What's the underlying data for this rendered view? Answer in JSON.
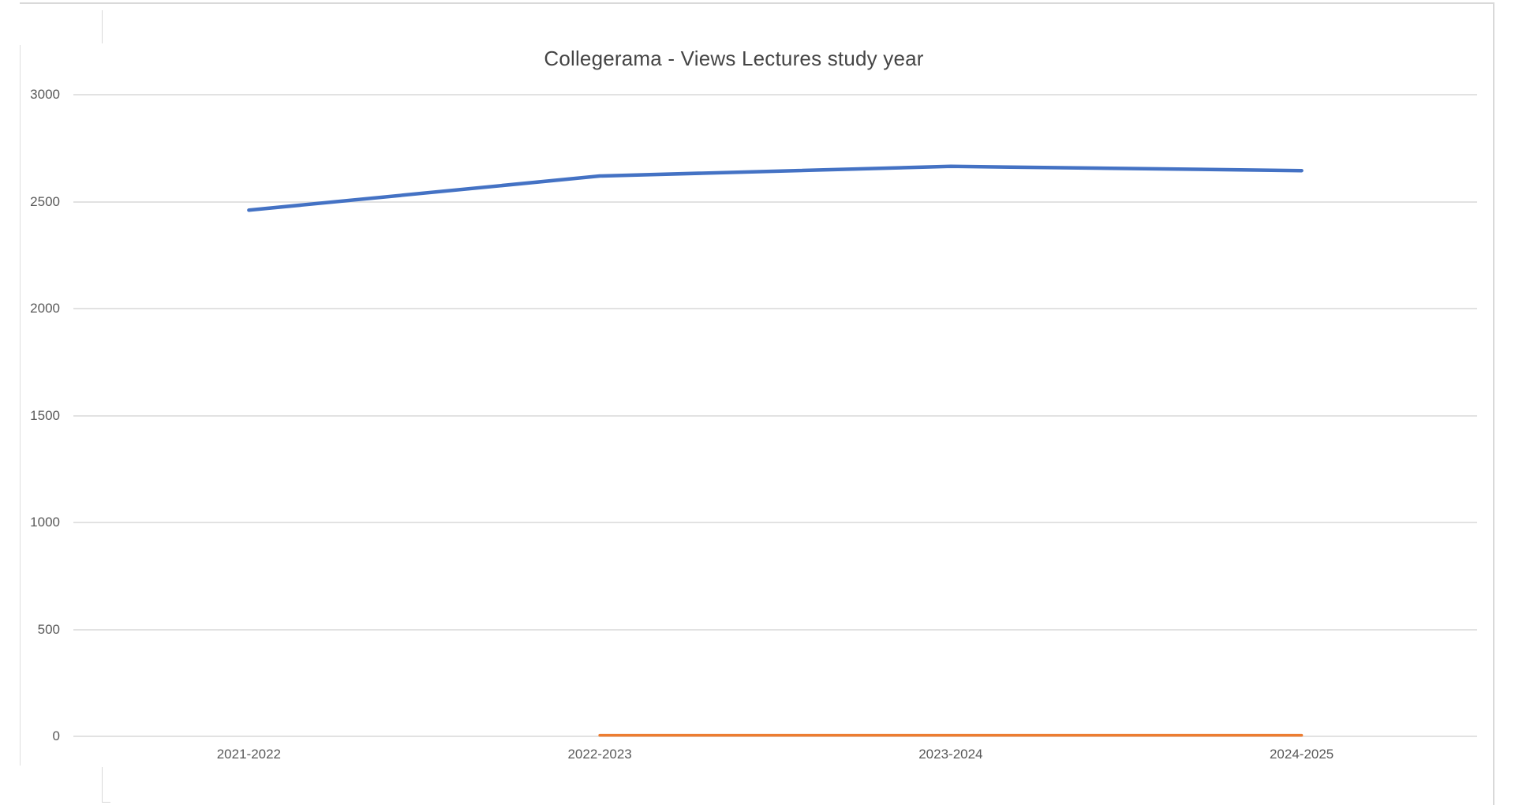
{
  "chart": {
    "title": "Collegerama - Views Lectures study year",
    "title_color": "#454545",
    "axis_label_color": "#595959",
    "gridline_color": "#e2e2e2",
    "background": "#ffffff"
  },
  "chart_data": {
    "type": "line",
    "title": "Collegerama - Views Lectures study year",
    "categories": [
      "2021-2022",
      "2022-2023",
      "2023-2024",
      "2024-2025"
    ],
    "series": [
      {
        "name": "blue-series",
        "color": "#4472c4",
        "stroke_width": 4.5,
        "values": [
          2460,
          2620,
          2665,
          2645
        ]
      },
      {
        "name": "orange-series",
        "color": "#ed7d31",
        "stroke_width": 3.5,
        "values": [
          null,
          5,
          5,
          5
        ]
      }
    ],
    "ylim": [
      0,
      3000
    ],
    "yticks": [
      0,
      500,
      1000,
      1500,
      2000,
      2500,
      3000
    ],
    "xlabel": "",
    "ylabel": "",
    "grid": true,
    "legend": "none"
  }
}
